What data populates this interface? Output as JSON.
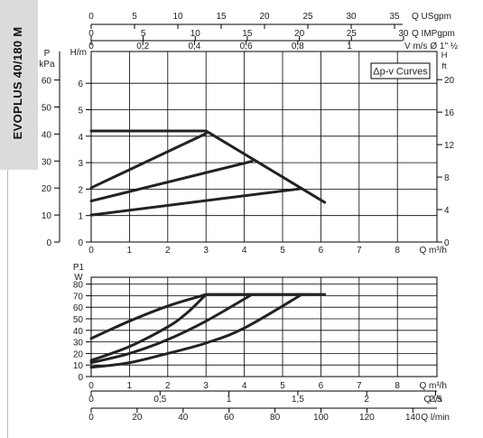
{
  "model_name": "EVOPLUS 40/180 M",
  "top_axes": {
    "usgpm": {
      "label": "Q USgpm",
      "ticks": [
        "0",
        "5",
        "10",
        "15",
        "20",
        "25",
        "30",
        "35"
      ],
      "values": [
        0,
        5,
        10,
        15,
        20,
        25,
        30,
        35
      ]
    },
    "impgpm": {
      "label": "Q IMPgpm",
      "ticks": [
        "0",
        "5",
        "10",
        "15",
        "20",
        "25",
        "30"
      ],
      "values": [
        0,
        5,
        10,
        15,
        20,
        25,
        30
      ]
    },
    "velocity": {
      "label": "V m/s Ø 1\" ½",
      "ticks": [
        "0",
        "0,2",
        "0,4",
        "0,6",
        "0,8",
        "1"
      ],
      "values": [
        0,
        0.2,
        0.4,
        0.6,
        0.8,
        1.0
      ]
    }
  },
  "bottom_axes": {
    "ls": {
      "label": "Q l/s",
      "ticks": [
        "0",
        "0,5",
        "1",
        "1,5",
        "2",
        "2,5"
      ],
      "values": [
        0,
        0.5,
        1,
        1.5,
        2,
        2.5
      ]
    },
    "lmin": {
      "label": "Q l/min",
      "ticks": [
        "0",
        "20",
        "40",
        "60",
        "80",
        "100",
        "120",
        "140"
      ],
      "values": [
        0,
        20,
        40,
        60,
        80,
        100,
        120,
        140
      ]
    }
  },
  "chart_data": [
    {
      "type": "line",
      "legend": "Δp-v Curves",
      "xlabel": "Q m³/h",
      "x_ticks": [
        "0",
        "1",
        "2",
        "3",
        "4",
        "5",
        "6",
        "7",
        "8"
      ],
      "xlim": [
        0,
        8.2
      ],
      "ylabel_left_outer": "P kPa",
      "ylabel_left_inner": "H/m",
      "ylabel_right": "H ft",
      "ylim": [
        0,
        7
      ],
      "h_ticks": [
        "0",
        "1",
        "2",
        "3",
        "4",
        "5",
        "6"
      ],
      "kpa_ticks": [
        "0",
        "10",
        "20",
        "30",
        "40",
        "50",
        "60"
      ],
      "kpa_values": [
        0,
        10,
        20,
        30,
        40,
        50,
        60
      ],
      "ft_ticks": [
        "0",
        "4",
        "8",
        "12",
        "16",
        "20"
      ],
      "ft_values": [
        0,
        4,
        8,
        12,
        16,
        20
      ],
      "series": [
        {
          "x": [
            0,
            3.0,
            6.1
          ],
          "y": [
            4.2,
            4.2,
            1.5
          ]
        },
        {
          "x": [
            0,
            3.0
          ],
          "y": [
            2.05,
            4.1
          ]
        },
        {
          "x": [
            0,
            4.2
          ],
          "y": [
            1.55,
            3.05
          ]
        },
        {
          "x": [
            0,
            5.5
          ],
          "y": [
            1.02,
            2.02
          ]
        }
      ]
    },
    {
      "type": "line",
      "xlabel": "Q m³/h",
      "x_ticks": [
        "0",
        "1",
        "2",
        "3",
        "4",
        "5",
        "6",
        "7",
        "8"
      ],
      "xlim": [
        0,
        8.2
      ],
      "ylabel": "P1 W",
      "y_ticks": [
        "0",
        "10",
        "20",
        "30",
        "40",
        "50",
        "60",
        "70",
        "80"
      ],
      "ylim": [
        0,
        90
      ],
      "series": [
        {
          "x": [
            0,
            1,
            2,
            3,
            6.1
          ],
          "y": [
            33,
            48,
            61,
            71,
            71
          ]
        },
        {
          "x": [
            0,
            1,
            2,
            2.5,
            3,
            6.1
          ],
          "y": [
            14,
            26,
            43,
            55,
            71,
            71
          ]
        },
        {
          "x": [
            0,
            1,
            2,
            3,
            4.2
          ],
          "y": [
            12,
            20,
            32,
            48,
            71
          ]
        },
        {
          "x": [
            0,
            1,
            2,
            3,
            4,
            5.5
          ],
          "y": [
            8,
            12,
            20,
            29,
            42,
            71
          ]
        }
      ]
    }
  ],
  "colors": {
    "line": "#222222",
    "grid": "#000000",
    "legend_border": "#000000"
  }
}
